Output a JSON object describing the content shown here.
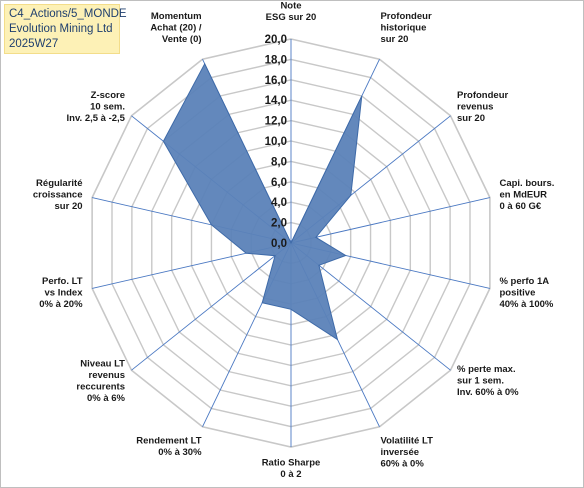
{
  "header": {
    "line1": "C4_Actions/5_MONDE",
    "line2": "Evolution Mining Ltd",
    "line3": "2025W27"
  },
  "chart_data": {
    "type": "radar",
    "rlim": [
      0,
      20
    ],
    "ticks": [
      "0,0",
      "2,0",
      "4,0",
      "6,0",
      "8,0",
      "10,0",
      "12,0",
      "14,0",
      "16,0",
      "18,0",
      "20,0"
    ],
    "grid": true,
    "series_color": "#5b82b8",
    "axes": [
      {
        "label": [
          "Note",
          "ESG sur 20"
        ],
        "value": 0
      },
      {
        "label": [
          "Profondeur",
          "historique",
          "sur 20"
        ],
        "value": 16
      },
      {
        "label": [
          "Profondeur",
          "revenus",
          "sur 20"
        ],
        "value": 7.5
      },
      {
        "label": [
          "Capi. bours.",
          "en MdEUR",
          "0 à 60 G€"
        ],
        "value": 2.5
      },
      {
        "label": [
          "% perfo 1A",
          "positive",
          "40% à 100%"
        ],
        "value": 5.5
      },
      {
        "label": [
          "% perte max.",
          "sur 1 sem.",
          "Inv. 60% à 0%"
        ],
        "value": 3.5
      },
      {
        "label": [
          "Volatilité LT",
          "inversée",
          "60% à 0%"
        ],
        "value": 10.5
      },
      {
        "label": [
          "Ratio Sharpe",
          "0 à 2"
        ],
        "value": 6.5
      },
      {
        "label": [
          "Rendement LT",
          "0% à 30%"
        ],
        "value": 6.5
      },
      {
        "label": [
          "Niveau LT",
          "revenus",
          "reccurents",
          "0% à 6%"
        ],
        "value": 2
      },
      {
        "label": [
          "Perfo. LT",
          "vs Index",
          "0% à 20%"
        ],
        "value": 4.5
      },
      {
        "label": [
          "Régularité",
          "croissance",
          "sur 20"
        ],
        "value": 8
      },
      {
        "label": [
          "Z-score",
          "10 sem.",
          "Inv. 2,5 à -2,5"
        ],
        "value": 16
      },
      {
        "label": [
          "Momentum",
          "Achat (20) /",
          "Vente (0)"
        ],
        "value": 19.5
      }
    ]
  }
}
